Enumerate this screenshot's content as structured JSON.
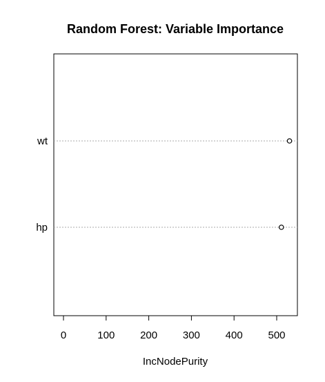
{
  "chart_data": {
    "type": "scatter",
    "title": "Random Forest: Variable Importance",
    "xlabel": "IncNodePurity",
    "ylabel": "",
    "categories": [
      "wt",
      "hp"
    ],
    "values": [
      530,
      511
    ],
    "xlim": [
      -20,
      550
    ],
    "xticks": [
      0,
      100,
      200,
      300,
      400,
      500
    ],
    "grid": false,
    "legend": "none"
  }
}
